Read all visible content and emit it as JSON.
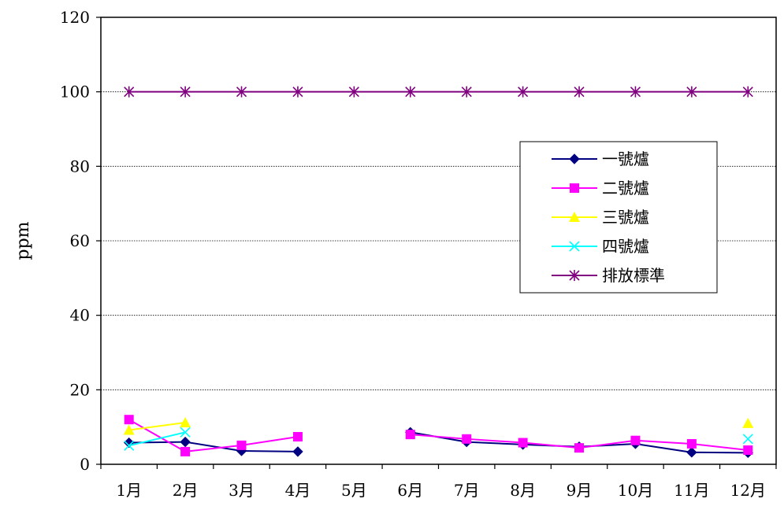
{
  "chart_data": {
    "type": "line",
    "title": "",
    "xlabel": "",
    "ylabel": "ppm",
    "ylim": [
      0,
      120
    ],
    "yticks": [
      0,
      20,
      40,
      60,
      80,
      100,
      120
    ],
    "grid": true,
    "legend_position": "right",
    "categories": [
      "1月",
      "2月",
      "3月",
      "4月",
      "5月",
      "6月",
      "7月",
      "8月",
      "9月",
      "10月",
      "11月",
      "12月"
    ],
    "series": [
      {
        "name": "一號爐",
        "color": "#000080",
        "marker": "diamond",
        "values": [
          5.8,
          6.0,
          3.6,
          3.4,
          null,
          8.6,
          6.0,
          5.3,
          4.7,
          5.5,
          3.2,
          3.1
        ]
      },
      {
        "name": "二號爐",
        "color": "#ff00ff",
        "marker": "square",
        "values": [
          12.0,
          3.4,
          5.1,
          7.4,
          null,
          8.0,
          6.8,
          5.8,
          4.4,
          6.4,
          5.5,
          3.8
        ]
      },
      {
        "name": "三號爐",
        "color": "#ffff00",
        "marker": "triangle",
        "values": [
          9.2,
          11.2,
          null,
          null,
          null,
          null,
          null,
          null,
          null,
          null,
          null,
          11.0
        ]
      },
      {
        "name": "四號爐",
        "color": "#00ffff",
        "marker": "x",
        "values": [
          5.0,
          8.6,
          null,
          null,
          null,
          null,
          null,
          null,
          null,
          null,
          null,
          6.8
        ]
      },
      {
        "name": "排放標準",
        "color": "#800080",
        "marker": "asterisk",
        "values": [
          100,
          100,
          100,
          100,
          100,
          100,
          100,
          100,
          100,
          100,
          100,
          100
        ]
      }
    ]
  }
}
